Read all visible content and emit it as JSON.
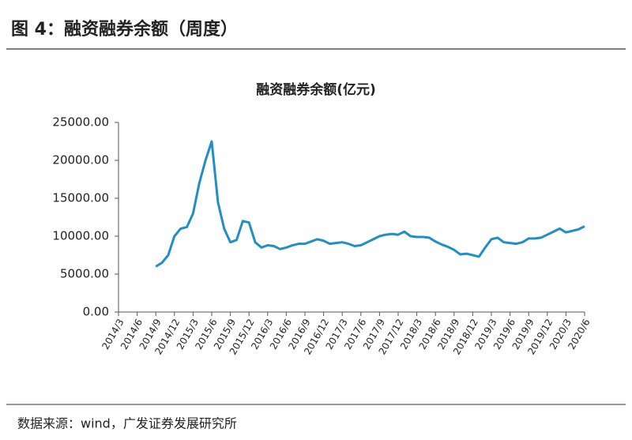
{
  "header": {
    "title": "图 4：融资融券余额（周度）"
  },
  "chart_data": {
    "type": "line",
    "title": "融资融券余额(亿元)",
    "x": [
      "2014/9",
      "2014/10",
      "2014/11",
      "2014/12",
      "2015/1",
      "2015/2",
      "2015/3",
      "2015/4",
      "2015/5",
      "2015/6",
      "2015/7",
      "2015/8",
      "2015/9",
      "2015/10",
      "2015/11",
      "2015/12",
      "2016/1",
      "2016/2",
      "2016/3",
      "2016/4",
      "2016/5",
      "2016/6",
      "2016/7",
      "2016/8",
      "2016/9",
      "2016/10",
      "2016/11",
      "2016/12",
      "2017/1",
      "2017/2",
      "2017/3",
      "2017/4",
      "2017/5",
      "2017/6",
      "2017/7",
      "2017/8",
      "2017/9",
      "2017/10",
      "2017/11",
      "2017/12",
      "2018/1",
      "2018/2",
      "2018/3",
      "2018/4",
      "2018/5",
      "2018/6",
      "2018/7",
      "2018/8",
      "2018/9",
      "2018/10",
      "2018/11",
      "2018/12",
      "2019/1",
      "2019/2",
      "2019/3",
      "2019/4",
      "2019/5",
      "2019/6",
      "2019/7",
      "2019/8",
      "2019/9",
      "2019/10",
      "2019/11",
      "2019/12",
      "2020/1",
      "2020/2",
      "2020/3",
      "2020/4",
      "2020/5",
      "2020/6"
    ],
    "series": [
      {
        "name": "融资融券余额",
        "color": "#1f8fc4",
        "values": [
          6000,
          6500,
          7500,
          10000,
          11000,
          11200,
          13000,
          17000,
          20000,
          22500,
          14500,
          11000,
          9200,
          9500,
          12000,
          11800,
          9200,
          8500,
          8800,
          8700,
          8300,
          8500,
          8800,
          9000,
          9000,
          9300,
          9600,
          9400,
          9000,
          9100,
          9200,
          9000,
          8700,
          8800,
          9200,
          9600,
          10000,
          10200,
          10300,
          10200,
          10600,
          10000,
          9900,
          9900,
          9800,
          9300,
          8900,
          8600,
          8200,
          7600,
          7700,
          7500,
          7300,
          8500,
          9600,
          9800,
          9200,
          9100,
          9000,
          9200,
          9700,
          9700,
          9800,
          10200,
          10600,
          11000,
          10500,
          10700,
          10900,
          11300
        ]
      }
    ],
    "xticks": [
      "2014/3",
      "2014/6",
      "2014/9",
      "2014/12",
      "2015/3",
      "2015/6",
      "2015/9",
      "2015/12",
      "2016/3",
      "2016/6",
      "2016/9",
      "2016/12",
      "2017/3",
      "2017/6",
      "2017/9",
      "2017/12",
      "2018/3",
      "2018/6",
      "2018/9",
      "2018/12",
      "2019/3",
      "2019/6",
      "2019/9",
      "2019/12",
      "2020/3",
      "2020/6"
    ],
    "ylim": [
      0,
      25000
    ],
    "yticks": [
      {
        "value": 0,
        "label": "0.00"
      },
      {
        "value": 5000,
        "label": "5000.00"
      },
      {
        "value": 10000,
        "label": "10000.00"
      },
      {
        "value": 15000,
        "label": "15000.00"
      },
      {
        "value": 20000,
        "label": "20000.00"
      },
      {
        "value": 25000,
        "label": "25000.00"
      }
    ]
  },
  "footer": {
    "source": "数据来源：wind，广发证券发展研究所"
  }
}
